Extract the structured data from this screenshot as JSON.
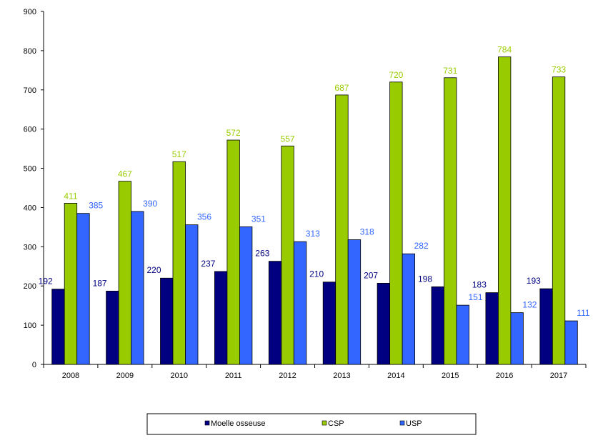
{
  "chart_data": {
    "type": "bar",
    "categories": [
      "2008",
      "2009",
      "2010",
      "2011",
      "2012",
      "2013",
      "2014",
      "2015",
      "2016",
      "2017"
    ],
    "series": [
      {
        "name": "Moelle osseuse",
        "color": "#000080",
        "label_color": "#000080",
        "values": [
          192,
          187,
          220,
          237,
          263,
          210,
          207,
          198,
          183,
          193
        ]
      },
      {
        "name": "CSP",
        "color": "#99CC00",
        "label_color": "#99CC00",
        "values": [
          411,
          467,
          517,
          572,
          557,
          687,
          720,
          731,
          784,
          733
        ]
      },
      {
        "name": "USP",
        "color": "#3366FF",
        "label_color": "#3366FF",
        "values": [
          385,
          390,
          356,
          351,
          313,
          318,
          282,
          151,
          132,
          111
        ]
      }
    ],
    "title": "",
    "xlabel": "",
    "ylabel": "",
    "ylim": [
      0,
      900
    ],
    "yticks": [
      0,
      100,
      200,
      300,
      400,
      500,
      600,
      700,
      800,
      900
    ],
    "grid": false,
    "legend_position": "bottom"
  }
}
